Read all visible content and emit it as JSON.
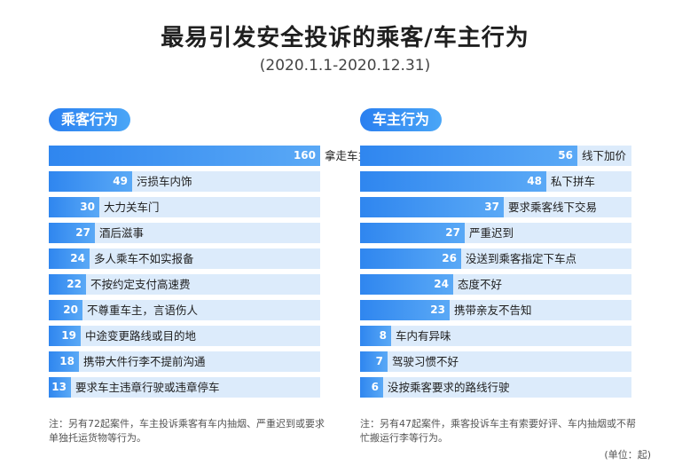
{
  "title": "最易引发安全投诉的乘客/车主行为",
  "subtitle": "(2020.1.1-2020.12.31)",
  "unit": "(单位：起)",
  "colors": {
    "bar": "#2f86ef",
    "track": "#dcebfb",
    "pill": "#2a7ff0"
  },
  "chart_data": [
    {
      "type": "bar",
      "orientation": "horizontal",
      "title": "乘客行为",
      "categories": [
        "拿走车主随用物品",
        "污损车内饰",
        "大力关车门",
        "酒后滋事",
        "多人乘车不如实报备",
        "不按约定支付高速费",
        "不尊重车主，言语伤人",
        "中途变更路线或目的地",
        "携带大件行李不提前沟通",
        "要求车主违章行驶或违章停车"
      ],
      "values": [
        160,
        49,
        30,
        27,
        24,
        22,
        20,
        19,
        18,
        13
      ],
      "xlim": [
        0,
        160
      ],
      "note": "注：另有72起案件，车主投诉乘客有车内抽烟、严重迟到或要求单独托运货物等行为。"
    },
    {
      "type": "bar",
      "orientation": "horizontal",
      "title": "车主行为",
      "categories": [
        "线下加价",
        "私下拼车",
        "要求乘客线下交易",
        "严重迟到",
        "没送到乘客指定下车点",
        "态度不好",
        "携带亲友不告知",
        "车内有异味",
        "驾驶习惯不好",
        "没按乘客要求的路线行驶"
      ],
      "values": [
        56,
        48,
        37,
        27,
        26,
        24,
        23,
        8,
        7,
        6
      ],
      "xlim": [
        0,
        70
      ],
      "note": "注：另有47起案件，乘客投诉车主有索要好评、车内抽烟或不帮忙搬运行李等行为。"
    }
  ]
}
